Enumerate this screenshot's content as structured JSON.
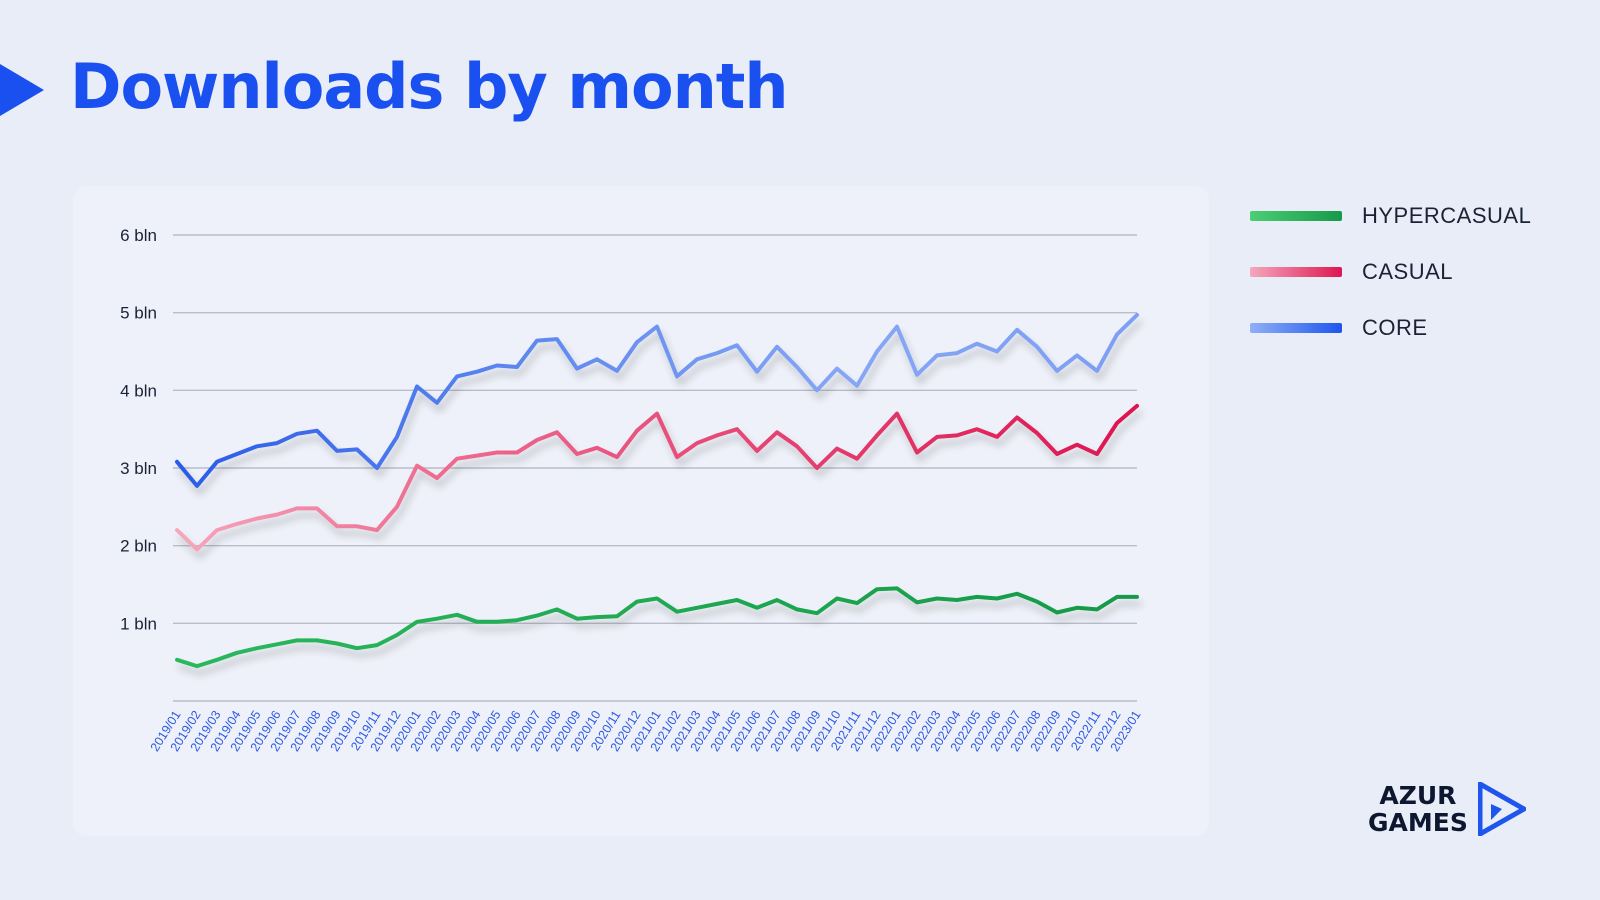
{
  "title": "Downloads by month",
  "legend": [
    {
      "label": "HYPERCASUAL",
      "color_start": "#4cce74",
      "color_end": "#17994a"
    },
    {
      "label": "CASUAL",
      "color_start": "#f4a9bd",
      "color_end": "#df1550"
    },
    {
      "label": "CORE",
      "color_start": "#8fb0f6",
      "color_end": "#1e55ee"
    }
  ],
  "logo": {
    "line1": "AZUR",
    "line2": "GAMES"
  },
  "chart_data": {
    "type": "line",
    "ylim": [
      0,
      6
    ],
    "yticks": [
      0,
      1,
      2,
      3,
      4,
      5,
      6
    ],
    "ytick_labels": [
      "",
      "1 bln",
      "2 bln",
      "3 bln",
      "4 bln",
      "5 bln",
      "6 bln"
    ],
    "grid": true,
    "categories": [
      "2019/01",
      "2019/02",
      "2019/03",
      "2019/04",
      "2019/05",
      "2019/06",
      "2019/07",
      "2019/08",
      "2019/09",
      "2019/10",
      "2019/11",
      "2019/12",
      "2020/01",
      "2020/02",
      "2020/03",
      "2020/04",
      "2020/05",
      "2020/06",
      "2020/07",
      "2020/08",
      "2020/09",
      "2020/10",
      "2020/11",
      "2020/12",
      "2021/01",
      "2021/02",
      "2021/03",
      "2021/04",
      "2021/05",
      "2021/06",
      "2021/07",
      "2021/08",
      "2021/09",
      "2021/10",
      "2021/11",
      "2021/12",
      "2022/01",
      "2022/02",
      "2022/03",
      "2022/04",
      "2022/05",
      "2022/06",
      "2022/07",
      "2022/08",
      "2022/09",
      "2022/10",
      "2022/11",
      "2022/12",
      "2023/01"
    ],
    "series": [
      {
        "name": "HYPERCASUAL",
        "color": "#1fa850",
        "values": [
          0.53,
          0.45,
          0.53,
          0.62,
          0.68,
          0.73,
          0.78,
          0.78,
          0.74,
          0.68,
          0.72,
          0.85,
          1.02,
          1.06,
          1.11,
          1.02,
          1.02,
          1.04,
          1.1,
          1.18,
          1.06,
          1.08,
          1.09,
          1.28,
          1.32,
          1.15,
          1.2,
          1.25,
          1.3,
          1.2,
          1.3,
          1.18,
          1.13,
          1.32,
          1.26,
          1.44,
          1.45,
          1.27,
          1.32,
          1.3,
          1.34,
          1.32,
          1.38,
          1.28,
          1.14,
          1.2,
          1.18,
          1.34,
          1.34
        ]
      },
      {
        "name": "CASUAL",
        "color": "#e81f57",
        "values": [
          2.2,
          1.95,
          2.2,
          2.28,
          2.35,
          2.4,
          2.48,
          2.48,
          2.25,
          2.25,
          2.2,
          2.5,
          3.03,
          2.87,
          3.12,
          3.16,
          3.2,
          3.2,
          3.36,
          3.46,
          3.18,
          3.26,
          3.14,
          3.48,
          3.7,
          3.14,
          3.32,
          3.42,
          3.5,
          3.22,
          3.46,
          3.28,
          3.0,
          3.25,
          3.12,
          3.42,
          3.7,
          3.2,
          3.4,
          3.42,
          3.5,
          3.4,
          3.65,
          3.45,
          3.18,
          3.3,
          3.18,
          3.58,
          3.8
        ]
      },
      {
        "name": "CORE",
        "color": "#2f63ee",
        "values": [
          3.08,
          2.77,
          3.08,
          3.18,
          3.28,
          3.32,
          3.44,
          3.48,
          3.22,
          3.24,
          3.0,
          3.4,
          4.05,
          3.84,
          4.18,
          4.24,
          4.32,
          4.3,
          4.64,
          4.66,
          4.28,
          4.4,
          4.25,
          4.62,
          4.82,
          4.18,
          4.4,
          4.48,
          4.58,
          4.24,
          4.56,
          4.3,
          4.0,
          4.28,
          4.06,
          4.5,
          4.82,
          4.2,
          4.45,
          4.48,
          4.6,
          4.5,
          4.78,
          4.56,
          4.25,
          4.45,
          4.25,
          4.72,
          4.97
        ]
      }
    ]
  }
}
